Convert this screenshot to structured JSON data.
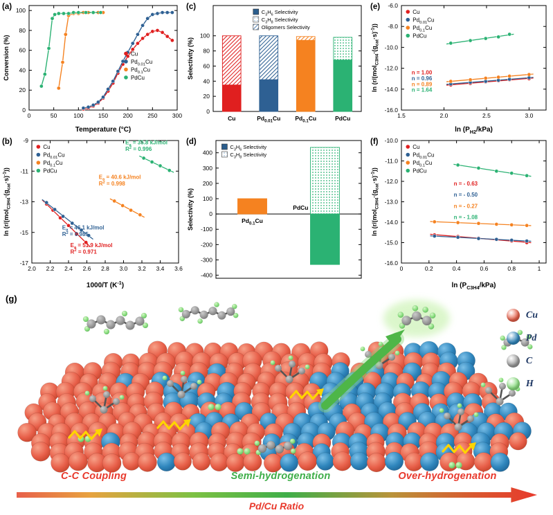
{
  "colors": {
    "cu_series": "#e01f1f",
    "pd001cu_series": "#2e6093",
    "pd01cu_series": "#f58220",
    "pdcu_series": "#2bb273",
    "cu_sphere": "#e8604a",
    "pd_sphere": "#2f86bd",
    "c_sphere": "#9a9a9a",
    "h_sphere": "#8ade7f",
    "caption_red": "#e8392c",
    "caption_green": "#3fae49",
    "hop_arrow_yellow": "#ffd400"
  },
  "chart_data": [
    {
      "panel": "(a)",
      "type": "line",
      "xlabel": "Temperature (°C)",
      "ylabel": "Conversion (%)",
      "xlim": [
        0,
        300
      ],
      "ylim": [
        0,
        105
      ],
      "xticks": [
        0,
        50,
        100,
        150,
        200,
        250,
        300
      ],
      "xtick_labels": [
        "0",
        "50",
        "100",
        "150",
        "200",
        "250",
        "300"
      ],
      "yticks": [
        0,
        20,
        40,
        60,
        80,
        100
      ],
      "ytick_labels": [
        "0",
        "20",
        "40",
        "60",
        "80",
        "100"
      ],
      "margins": [
        8,
        10,
        36,
        42
      ],
      "legend": {
        "fx": 0.64,
        "fy": 0.4
      },
      "series": [
        {
          "name": "Cu",
          "color": "#e01f1f",
          "points": [
            [
              110,
              1
            ],
            [
              120,
              2
            ],
            [
              130,
              4
            ],
            [
              140,
              7
            ],
            [
              150,
              12
            ],
            [
              160,
              19
            ],
            [
              170,
              27
            ],
            [
              180,
              37
            ],
            [
              190,
              46
            ],
            [
              200,
              54
            ],
            [
              210,
              61
            ],
            [
              220,
              67
            ],
            [
              230,
              72
            ],
            [
              240,
              76
            ],
            [
              250,
              79
            ],
            [
              260,
              80
            ],
            [
              270,
              78
            ],
            [
              280,
              74
            ],
            [
              290,
              70
            ]
          ]
        },
        {
          "name": "Pd_{0.01}Cu",
          "color": "#2e6093",
          "points": [
            [
              110,
              2
            ],
            [
              120,
              3
            ],
            [
              130,
              5
            ],
            [
              140,
              8
            ],
            [
              150,
              13
            ],
            [
              160,
              21
            ],
            [
              170,
              29
            ],
            [
              180,
              39
            ],
            [
              190,
              49
            ],
            [
              200,
              58
            ],
            [
              210,
              67
            ],
            [
              220,
              76
            ],
            [
              230,
              85
            ],
            [
              240,
              92
            ],
            [
              250,
              96
            ],
            [
              260,
              97
            ],
            [
              270,
              98
            ],
            [
              280,
              98
            ],
            [
              290,
              98
            ]
          ]
        },
        {
          "name": "Pd_{0.1}Cu",
          "color": "#f58220",
          "points": [
            [
              60,
              22
            ],
            [
              68,
              48
            ],
            [
              74,
              76
            ],
            [
              80,
              95
            ],
            [
              90,
              97
            ],
            [
              100,
              97
            ],
            [
              110,
              98
            ],
            [
              120,
              98
            ],
            [
              130,
              98
            ],
            [
              140,
              98
            ],
            [
              150,
              98
            ]
          ]
        },
        {
          "name": "PdCu",
          "color": "#2bb273",
          "points": [
            [
              25,
              24
            ],
            [
              32,
              36
            ],
            [
              40,
              62
            ],
            [
              47,
              92
            ],
            [
              52,
              96
            ],
            [
              60,
              97
            ],
            [
              70,
              97
            ],
            [
              80,
              97
            ],
            [
              90,
              98
            ],
            [
              100,
              98
            ],
            [
              115,
              98
            ],
            [
              130,
              98
            ],
            [
              145,
              98
            ]
          ]
        }
      ]
    },
    {
      "panel": "(b)",
      "type": "scatter-fit",
      "xlabel": "1000/T (K^{-1})",
      "ylabel": "ln (r/(mol_{C3H4}·(g_{cat}·s)^{-1}))",
      "xlim": [
        2.0,
        3.6
      ],
      "ylim": [
        -17,
        -9
      ],
      "xticks": [
        2.0,
        2.2,
        2.4,
        2.6,
        2.8,
        3.0,
        3.2,
        3.4,
        3.6
      ],
      "xtick_labels": [
        "2.0",
        "2.2",
        "2.4",
        "2.6",
        "2.8",
        "3.0",
        "3.2",
        "3.4",
        "3.6"
      ],
      "yticks": [
        -17,
        -15,
        -13,
        -11,
        -9
      ],
      "ytick_labels": [
        "-17",
        "-15",
        "-13",
        "-11",
        "-9"
      ],
      "margins": [
        8,
        8,
        40,
        46
      ],
      "legend": {
        "fx": 0.03,
        "fy": 0.0
      },
      "series": [
        {
          "name": "Cu",
          "color": "#e01f1f",
          "points": [
            [
              2.16,
              -13.15
            ],
            [
              2.23,
              -13.55
            ],
            [
              2.31,
              -14.05
            ],
            [
              2.4,
              -14.55
            ],
            [
              2.49,
              -15.1
            ],
            [
              2.59,
              -15.65
            ]
          ]
        },
        {
          "name": "Pd_{0.01}Cu",
          "color": "#2e6093",
          "points": [
            [
              2.16,
              -13.05
            ],
            [
              2.25,
              -13.5
            ],
            [
              2.34,
              -13.95
            ],
            [
              2.44,
              -14.4
            ],
            [
              2.54,
              -14.85
            ],
            [
              2.62,
              -15.2
            ]
          ]
        },
        {
          "name": "Pd_{0.1}Cu",
          "color": "#f58220",
          "points": [
            [
              2.9,
              -12.95
            ],
            [
              2.99,
              -13.25
            ],
            [
              3.08,
              -13.55
            ],
            [
              3.18,
              -13.85
            ]
          ]
        },
        {
          "name": "PdCu",
          "color": "#2bb273",
          "points": [
            [
              3.22,
              -10.15
            ],
            [
              3.31,
              -10.4
            ],
            [
              3.4,
              -10.65
            ],
            [
              3.5,
              -10.95
            ]
          ]
        }
      ],
      "annotations": [
        {
          "lines": [
            "E_{a} = 35.8 kJ/mol",
            "R^{2} = 0.996"
          ],
          "color": "#2bb273",
          "x": 3.02,
          "y": -9.25
        },
        {
          "lines": [
            "E_{a} = 40.6 kJ/mol",
            "R^{2} = 0.998"
          ],
          "color": "#f58220",
          "x": 2.73,
          "y": -11.5
        },
        {
          "lines": [
            "E_{a} = 46.1 kJ/mol",
            "R^{2} = 0.985"
          ],
          "color": "#2e6093",
          "x": 2.33,
          "y": -14.8
        },
        {
          "lines": [
            "E_{a} = 51.9 kJ/mol",
            "R^{2} = 0.971"
          ],
          "color": "#e01f1f",
          "x": 2.42,
          "y": -15.95
        }
      ]
    },
    {
      "panel": "(c)",
      "type": "stacked-bar",
      "ylabel": "Selectivity (%)",
      "ylim": [
        0,
        140
      ],
      "yticks": [
        0,
        20,
        40,
        60,
        80,
        100
      ],
      "ytick_labels": [
        "0",
        "20",
        "40",
        "60",
        "80",
        "100"
      ],
      "margins": [
        8,
        10,
        34,
        42
      ],
      "legend": {
        "fx": 0.27,
        "fy": 0.0
      },
      "categories": [
        "Cu",
        "Pd_{0.01}Cu",
        "Pd_{0.1}Cu",
        "PdCu"
      ],
      "bar_colors": [
        "#e01f1f",
        "#2e6093",
        "#f58220",
        "#2bb273"
      ],
      "legend_items": [
        {
          "label": "C_{3}H_{6} Selectivity",
          "fill": "solid",
          "color": "#2b5d8c"
        },
        {
          "label": "C_{3}H_{8} Selectivity",
          "fill": "dots",
          "color": "#9dbcd8"
        },
        {
          "label": "Oligomers Selectivity",
          "fill": "hatch",
          "color": "#5c87b5"
        }
      ],
      "series": [
        {
          "name": "C_{3}H_{6} Selectivity",
          "fill": "solid",
          "values": [
            35,
            42,
            94,
            68
          ]
        },
        {
          "name": "C_{3}H_{8} Selectivity",
          "fill": "dots",
          "values": [
            0,
            0,
            0,
            30
          ]
        },
        {
          "name": "Oligomers Selectivity",
          "fill": "hatch",
          "values": [
            65,
            58,
            5,
            0
          ]
        }
      ]
    },
    {
      "panel": "(d)",
      "type": "posneg-bar",
      "ylabel": "Selectivity (%)",
      "ylim": [
        -420,
        480
      ],
      "yticks": [
        -400,
        -300,
        -200,
        -100,
        0,
        100,
        200,
        300,
        400
      ],
      "ytick_labels": [
        "-400",
        "-300",
        "-200",
        "-100",
        "0",
        "100",
        "200",
        "300",
        "400"
      ],
      "margins": [
        8,
        10,
        18,
        46
      ],
      "legend": {
        "fx": 0.04,
        "fy": 0.0
      },
      "bar_colors": [
        "#f58220",
        "#2bb273"
      ],
      "legend_items": [
        {
          "label": "C_{3}H_{6} Selectivity",
          "fill": "solid",
          "color": "#2b5d8c"
        },
        {
          "label": "C_{3}H_{8} Selectivity",
          "fill": "dots",
          "color": "#9dbcd8"
        }
      ],
      "bars": [
        {
          "category": "Pd_{0.1}Cu",
          "c3h6": 100,
          "c3h8": 0
        },
        {
          "category": "PdCu",
          "c3h6": -330,
          "c3h8": 435
        }
      ]
    },
    {
      "panel": "(e)",
      "type": "scatter-fit",
      "xlabel": "ln (P_{H2}/kPa)",
      "ylabel": "ln (r/(mol_{C3H4}·(g_{cat}·s)^{-1}))",
      "xlim": [
        1.5,
        3.2
      ],
      "ylim": [
        -16,
        -6
      ],
      "xticks": [
        1.5,
        2.0,
        2.5,
        3.0
      ],
      "xtick_labels": [
        "1.5",
        "2.0",
        "2.5",
        "3.0"
      ],
      "yticks": [
        -16,
        -14,
        -12,
        -10,
        -8,
        -6
      ],
      "ytick_labels": [
        "-16.0",
        "-14.0",
        "-12.0",
        "-10.0",
        "-8.0",
        "-6.0"
      ],
      "margins": [
        8,
        10,
        36,
        48
      ],
      "legend": {
        "fx": 0.03,
        "fy": 0.0
      },
      "series": [
        {
          "name": "Cu",
          "color": "#e01f1f",
          "points": [
            [
              2.08,
              -13.6
            ],
            [
              2.31,
              -13.45
            ],
            [
              2.49,
              -13.3
            ],
            [
              2.64,
              -13.2
            ],
            [
              2.77,
              -13.1
            ],
            [
              3.0,
              -13.0
            ]
          ]
        },
        {
          "name": "Pd_{0.01}Cu",
          "color": "#2e6093",
          "points": [
            [
              2.08,
              -13.5
            ],
            [
              2.31,
              -13.35
            ],
            [
              2.49,
              -13.25
            ],
            [
              2.64,
              -13.15
            ],
            [
              2.77,
              -13.05
            ],
            [
              3.0,
              -12.9
            ]
          ]
        },
        {
          "name": "Pd_{0.1}Cu",
          "color": "#f58220",
          "points": [
            [
              2.08,
              -13.25
            ],
            [
              2.31,
              -13.1
            ],
            [
              2.49,
              -12.95
            ],
            [
              2.64,
              -12.85
            ],
            [
              2.77,
              -12.75
            ],
            [
              3.0,
              -12.6
            ]
          ]
        },
        {
          "name": "PdCu",
          "color": "#2bb273",
          "points": [
            [
              2.08,
              -9.6
            ],
            [
              2.31,
              -9.35
            ],
            [
              2.49,
              -9.15
            ],
            [
              2.64,
              -9.0
            ],
            [
              2.77,
              -8.75
            ]
          ]
        }
      ],
      "annotations": [
        {
          "lines": [
            "n = 1.00"
          ],
          "color": "#e01f1f",
          "x": 1.62,
          "y": -12.6
        },
        {
          "lines": [
            "n = 0.96"
          ],
          "color": "#2e6093",
          "x": 1.62,
          "y": -13.15
        },
        {
          "lines": [
            "n = 0.89"
          ],
          "color": "#f58220",
          "x": 1.62,
          "y": -13.7
        },
        {
          "lines": [
            "n = 1.64"
          ],
          "color": "#2bb273",
          "x": 1.62,
          "y": -14.25
        }
      ]
    },
    {
      "panel": "(f)",
      "type": "scatter-fit",
      "xlabel": "ln (P_{C3H4}/kPa)",
      "ylabel": "ln (r/(mol_{C3H4}·(g_{cat}·s)^{-1}))",
      "xlim": [
        0,
        1.05
      ],
      "ylim": [
        -16,
        -10
      ],
      "xticks": [
        0,
        0.2,
        0.4,
        0.6,
        0.8,
        1.0
      ],
      "xtick_labels": [
        "0",
        "0.2",
        "0.4",
        "0.6",
        "0.8",
        "1"
      ],
      "yticks": [
        -16,
        -15,
        -14,
        -13,
        -12,
        -11,
        -10
      ],
      "ytick_labels": [
        "-16.0",
        "-15.0",
        "-14.0",
        "-13.0",
        "-12.0",
        "-11.0",
        "-10.0"
      ],
      "margins": [
        8,
        10,
        40,
        48
      ],
      "legend": {
        "fx": 0.03,
        "fy": 0.0
      },
      "series": [
        {
          "name": "Cu",
          "color": "#e01f1f",
          "points": [
            [
              0.24,
              -14.62
            ],
            [
              0.41,
              -14.7
            ],
            [
              0.56,
              -14.78
            ],
            [
              0.69,
              -14.85
            ],
            [
              0.8,
              -14.92
            ],
            [
              0.91,
              -15.0
            ]
          ]
        },
        {
          "name": "Pd_{0.01}Cu",
          "color": "#2e6093",
          "points": [
            [
              0.24,
              -14.68
            ],
            [
              0.41,
              -14.74
            ],
            [
              0.56,
              -14.8
            ],
            [
              0.69,
              -14.84
            ],
            [
              0.8,
              -14.88
            ],
            [
              0.91,
              -14.92
            ]
          ]
        },
        {
          "name": "Pd_{0.1}Cu",
          "color": "#f58220",
          "points": [
            [
              0.24,
              -13.98
            ],
            [
              0.41,
              -14.02
            ],
            [
              0.56,
              -14.06
            ],
            [
              0.69,
              -14.1
            ],
            [
              0.8,
              -14.13
            ],
            [
              0.91,
              -14.16
            ]
          ]
        },
        {
          "name": "PdCu",
          "color": "#2bb273",
          "points": [
            [
              0.41,
              -11.2
            ],
            [
              0.56,
              -11.35
            ],
            [
              0.69,
              -11.5
            ],
            [
              0.8,
              -11.6
            ],
            [
              0.91,
              -11.72
            ]
          ]
        }
      ],
      "annotations": [
        {
          "lines": [
            "n = - 0.63"
          ],
          "color": "#e01f1f",
          "x": 0.38,
          "y": -12.2
        },
        {
          "lines": [
            "n = - 0.50"
          ],
          "color": "#2e6093",
          "x": 0.38,
          "y": -12.75
        },
        {
          "lines": [
            "n = - 0.27"
          ],
          "color": "#f58220",
          "x": 0.38,
          "y": -13.3
        },
        {
          "lines": [
            "n = - 1.08"
          ],
          "color": "#2bb273",
          "x": 0.38,
          "y": -13.85
        }
      ]
    }
  ],
  "illustration": {
    "panel_label": "(g)",
    "legend": [
      {
        "label": "Cu",
        "color": "#e8604a"
      },
      {
        "label": "Pd",
        "color": "#2f86bd"
      },
      {
        "label": "C",
        "color": "#9a9a9a"
      },
      {
        "label": "H",
        "color": "#8ade7f"
      }
    ],
    "captions": {
      "left": "C-C Coupling",
      "center": "Semi-hydrogenation",
      "right": "Over-hydrogenation",
      "arrow": "Pd/Cu Ratio"
    }
  }
}
